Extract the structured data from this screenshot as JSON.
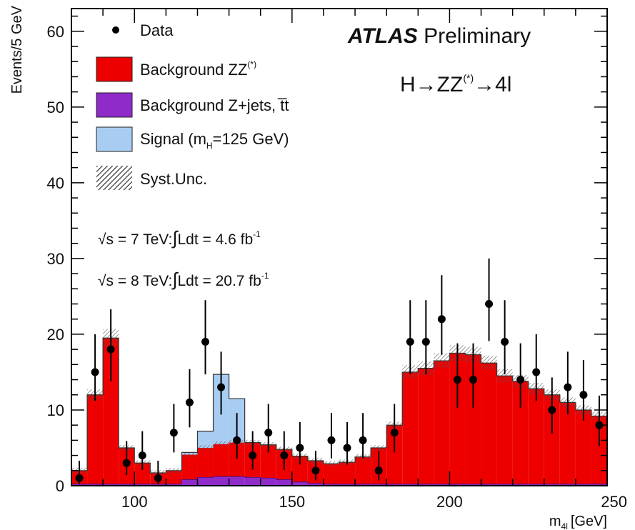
{
  "chart_data": {
    "type": "bar",
    "stacked_histogram_with_points": true,
    "bin_width": 5,
    "xlim": [
      80,
      250
    ],
    "ylim": [
      0,
      63
    ],
    "x_ticks": [
      100,
      150,
      200,
      250
    ],
    "y_ticks": [
      0,
      10,
      20,
      30,
      40,
      50,
      60
    ],
    "xlabel": "m",
    "xlabel_sub": "4l",
    "xlabel_unit": "[GeV]",
    "ylabel": "Events/5 GeV",
    "title_bold": "ATLAS",
    "title_rest": "Preliminary",
    "process_label": "H→ZZ",
    "process_sup": "(*)",
    "process_tail": "→4l",
    "lumi": [
      {
        "root": "√",
        "pre": "s = 7 TeV:",
        "int": "∫",
        "post": "Ldt = 4.6 fb",
        "sup": "-1"
      },
      {
        "root": "√",
        "pre": "s = 8 TeV:",
        "int": "∫",
        "post": "Ldt = 20.7 fb",
        "sup": "-1"
      }
    ],
    "legend": [
      {
        "key": "data",
        "text": "Data",
        "sup": "",
        "sub": "",
        "tail": ""
      },
      {
        "key": "zz",
        "text": "Background ZZ",
        "sup": "(*)",
        "sub": "",
        "tail": ""
      },
      {
        "key": "zjets",
        "text": "Background Z+jets, t̅t",
        "sup": "",
        "sub": "",
        "tail": ""
      },
      {
        "key": "signal",
        "text": "Signal (m",
        "sup": "",
        "sub": "H",
        "tail": "=125 GeV)"
      },
      {
        "key": "syst",
        "text": "Syst.Unc.",
        "sup": "",
        "sub": "",
        "tail": ""
      }
    ],
    "colors": {
      "zz": "#ee0000",
      "zjets": "#8e2bc9",
      "signal": "#a9cdf2",
      "data": "#000000"
    },
    "bins_low_edge": [
      80,
      85,
      90,
      95,
      100,
      105,
      110,
      115,
      120,
      125,
      130,
      135,
      140,
      145,
      150,
      155,
      160,
      165,
      170,
      175,
      180,
      185,
      190,
      195,
      200,
      205,
      210,
      215,
      220,
      225,
      230,
      235,
      240,
      245
    ],
    "series": [
      {
        "name": "Background Z+jets, t̅t",
        "key": "zjets",
        "values": [
          0.2,
          0.2,
          0.2,
          0.2,
          0.2,
          0.2,
          0.2,
          0.8,
          1.1,
          1.2,
          1.2,
          1.1,
          1.0,
          0.8,
          0.5,
          0.3,
          0.2,
          0.2,
          0.2,
          0.2,
          0.2,
          0.2,
          0.2,
          0.2,
          0.2,
          0.2,
          0.2,
          0.2,
          0.2,
          0.2,
          0.2,
          0.2,
          0.2,
          0.2
        ]
      },
      {
        "name": "Background ZZ",
        "key": "zz",
        "values": [
          1.8,
          11.8,
          19.3,
          4.8,
          2.8,
          1.5,
          1.8,
          3.3,
          3.9,
          4.3,
          4.5,
          4.6,
          4.4,
          4.0,
          3.4,
          3.0,
          2.7,
          2.9,
          3.6,
          4.8,
          7.8,
          14.8,
          15.3,
          16.3,
          17.3,
          17.1,
          16.0,
          14.3,
          13.6,
          12.6,
          11.8,
          10.8,
          9.8,
          9.0
        ]
      },
      {
        "name": "Signal (mH=125 GeV)",
        "key": "signal",
        "values": [
          0,
          0,
          0,
          0,
          0,
          0,
          0,
          0.3,
          2.2,
          9.2,
          5.8,
          0,
          0,
          0,
          0,
          0,
          0,
          0,
          0,
          0,
          0,
          0,
          0,
          0,
          0,
          0,
          0,
          0,
          0,
          0,
          0,
          0,
          0,
          0
        ]
      }
    ],
    "data_points": [
      {
        "x": 82.5,
        "y": 1,
        "err_up": 2.3,
        "err_down": 0.8
      },
      {
        "x": 87.5,
        "y": 15,
        "err_up": 5.0,
        "err_down": 3.8
      },
      {
        "x": 92.5,
        "y": 18,
        "err_up": 5.3,
        "err_down": 4.2
      },
      {
        "x": 97.5,
        "y": 3,
        "err_up": 2.9,
        "err_down": 1.6
      },
      {
        "x": 102.5,
        "y": 4,
        "err_up": 3.2,
        "err_down": 1.9
      },
      {
        "x": 107.5,
        "y": 1,
        "err_up": 2.3,
        "err_down": 0.8
      },
      {
        "x": 112.5,
        "y": 7,
        "err_up": 3.8,
        "err_down": 2.6
      },
      {
        "x": 117.5,
        "y": 11,
        "err_up": 4.4,
        "err_down": 3.3
      },
      {
        "x": 122.5,
        "y": 19,
        "err_up": 5.5,
        "err_down": 4.3
      },
      {
        "x": 127.5,
        "y": 13,
        "err_up": 4.7,
        "err_down": 3.6
      },
      {
        "x": 132.5,
        "y": 6,
        "err_up": 3.6,
        "err_down": 2.4
      },
      {
        "x": 137.5,
        "y": 4,
        "err_up": 3.2,
        "err_down": 1.9
      },
      {
        "x": 142.5,
        "y": 7,
        "err_up": 3.8,
        "err_down": 2.6
      },
      {
        "x": 147.5,
        "y": 4,
        "err_up": 3.2,
        "err_down": 1.9
      },
      {
        "x": 152.5,
        "y": 5,
        "err_up": 3.4,
        "err_down": 2.2
      },
      {
        "x": 157.5,
        "y": 2,
        "err_up": 2.6,
        "err_down": 1.3
      },
      {
        "x": 162.5,
        "y": 6,
        "err_up": 3.6,
        "err_down": 2.4
      },
      {
        "x": 167.5,
        "y": 5,
        "err_up": 3.4,
        "err_down": 2.2
      },
      {
        "x": 172.5,
        "y": 6,
        "err_up": 3.6,
        "err_down": 2.4
      },
      {
        "x": 177.5,
        "y": 2,
        "err_up": 2.6,
        "err_down": 1.3
      },
      {
        "x": 182.5,
        "y": 7,
        "err_up": 3.8,
        "err_down": 2.6
      },
      {
        "x": 187.5,
        "y": 19,
        "err_up": 5.5,
        "err_down": 4.3
      },
      {
        "x": 192.5,
        "y": 19,
        "err_up": 5.5,
        "err_down": 4.3
      },
      {
        "x": 197.5,
        "y": 22,
        "err_up": 5.8,
        "err_down": 4.7
      },
      {
        "x": 202.5,
        "y": 14,
        "err_up": 4.8,
        "err_down": 3.7
      },
      {
        "x": 207.5,
        "y": 14,
        "err_up": 4.8,
        "err_down": 3.7
      },
      {
        "x": 212.5,
        "y": 24,
        "err_up": 6.0,
        "err_down": 4.9
      },
      {
        "x": 217.5,
        "y": 19,
        "err_up": 5.5,
        "err_down": 4.3
      },
      {
        "x": 222.5,
        "y": 14,
        "err_up": 4.8,
        "err_down": 3.7
      },
      {
        "x": 227.5,
        "y": 15,
        "err_up": 5.0,
        "err_down": 3.8
      },
      {
        "x": 232.5,
        "y": 10,
        "err_up": 4.3,
        "err_down": 3.1
      },
      {
        "x": 237.5,
        "y": 13,
        "err_up": 4.7,
        "err_down": 3.6
      },
      {
        "x": 242.5,
        "y": 12,
        "err_up": 4.6,
        "err_down": 3.4
      },
      {
        "x": 247.5,
        "y": 8,
        "err_up": 3.9,
        "err_down": 2.8
      }
    ]
  }
}
